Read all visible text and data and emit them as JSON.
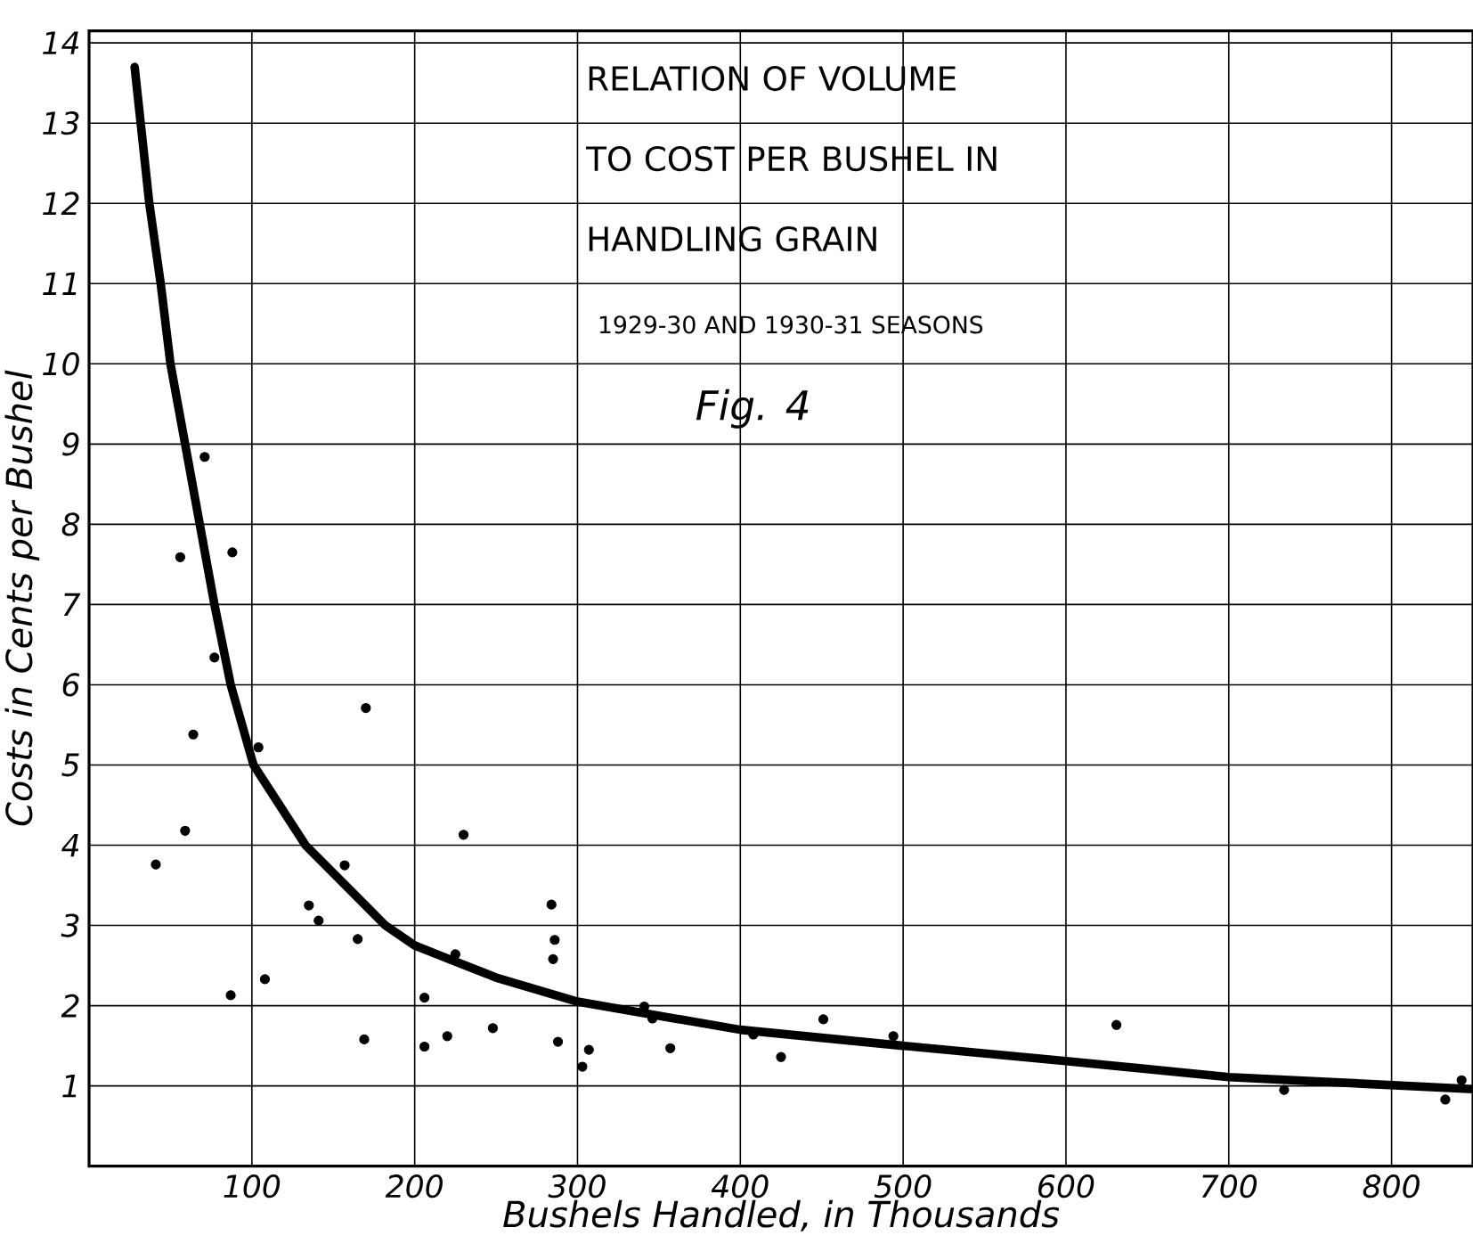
{
  "chart_data": {
    "type": "scatter",
    "title": "RELATION OF VOLUME TO COST PER BUSHEL IN HANDLING GRAIN",
    "subtitle": "1929-30 AND 1930-31 SEASONS",
    "annotations": [
      "Fig. 4"
    ],
    "xlabel": "Bushels Handled, in Thousands",
    "ylabel": "Costs in Cents per Bushel",
    "xlim": [
      0,
      850
    ],
    "ylim": [
      0,
      14.15
    ],
    "xticks": [
      100,
      200,
      300,
      400,
      500,
      600,
      700,
      800
    ],
    "yticks": [
      1,
      2,
      3,
      4,
      5,
      6,
      7,
      8,
      9,
      10,
      11,
      12,
      13,
      14
    ],
    "grid": true,
    "series": [
      {
        "color": "#000000",
        "marker": "circle",
        "x": [
          41,
          56,
          59,
          64,
          71,
          77,
          87,
          88,
          104,
          108,
          135,
          141,
          157,
          165,
          169,
          170,
          206,
          206,
          220,
          225,
          230,
          248,
          284,
          286,
          285,
          288,
          303,
          307,
          341,
          346,
          357,
          408,
          425,
          451,
          494,
          631,
          734,
          833,
          843
        ],
        "values": [
          3.76,
          7.59,
          4.18,
          5.38,
          8.84,
          6.34,
          2.13,
          7.65,
          5.22,
          2.33,
          3.25,
          3.06,
          3.75,
          2.83,
          1.58,
          5.71,
          2.1,
          1.49,
          1.62,
          2.64,
          4.13,
          1.72,
          3.26,
          2.82,
          2.58,
          1.55,
          1.24,
          1.45,
          1.99,
          1.84,
          1.47,
          1.64,
          1.36,
          1.83,
          1.62,
          1.76,
          0.95,
          0.83,
          1.07
        ]
      },
      {
        "type": "line",
        "color": "#000000",
        "marker": "none",
        "line_style": "solid",
        "x": [
          28,
          37,
          44,
          50,
          59,
          68,
          77,
          87,
          101,
          133,
          182,
          200,
          250,
          300,
          400,
          500,
          600,
          700,
          850
        ],
        "values": [
          13.7,
          12,
          11,
          10,
          9,
          8,
          7,
          6,
          5,
          4,
          3,
          2.75,
          2.35,
          2.05,
          1.7,
          1.5,
          1.31,
          1.11,
          0.96
        ]
      }
    ]
  }
}
